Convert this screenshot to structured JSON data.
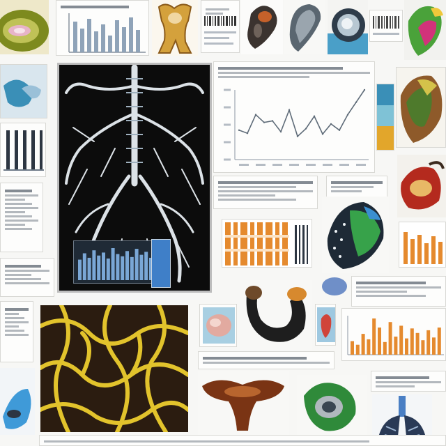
{
  "colors": {
    "background": "#f7f7f5",
    "panel_dark": "#0c0c0c",
    "bronchi": "#e8eef3",
    "mesh_yellow": "#e2c32c",
    "mesh_dark": "#2b1c10",
    "chart_line": "#5e6b78",
    "bar_orange": "#e58a2e",
    "bar_blue": "#7aa7d6",
    "accent_teal": "#3a8fb7",
    "accent_gold": "#e2a62b"
  },
  "line_chart": {
    "type": "line",
    "values": [
      38,
      34,
      58,
      48,
      50,
      36,
      64,
      30,
      40,
      56,
      33,
      46,
      38,
      58,
      74,
      90
    ]
  },
  "bar_chart_small": {
    "type": "bar",
    "values": [
      55,
      72,
      60,
      80,
      66,
      74,
      58,
      86,
      70,
      64,
      78,
      62,
      84,
      68,
      76,
      60,
      72
    ]
  },
  "bar_chart_orange": {
    "type": "bar",
    "values": [
      30,
      22,
      46,
      34,
      80,
      60,
      28,
      72,
      40,
      64,
      36,
      58,
      48,
      32,
      54,
      38,
      60
    ]
  }
}
